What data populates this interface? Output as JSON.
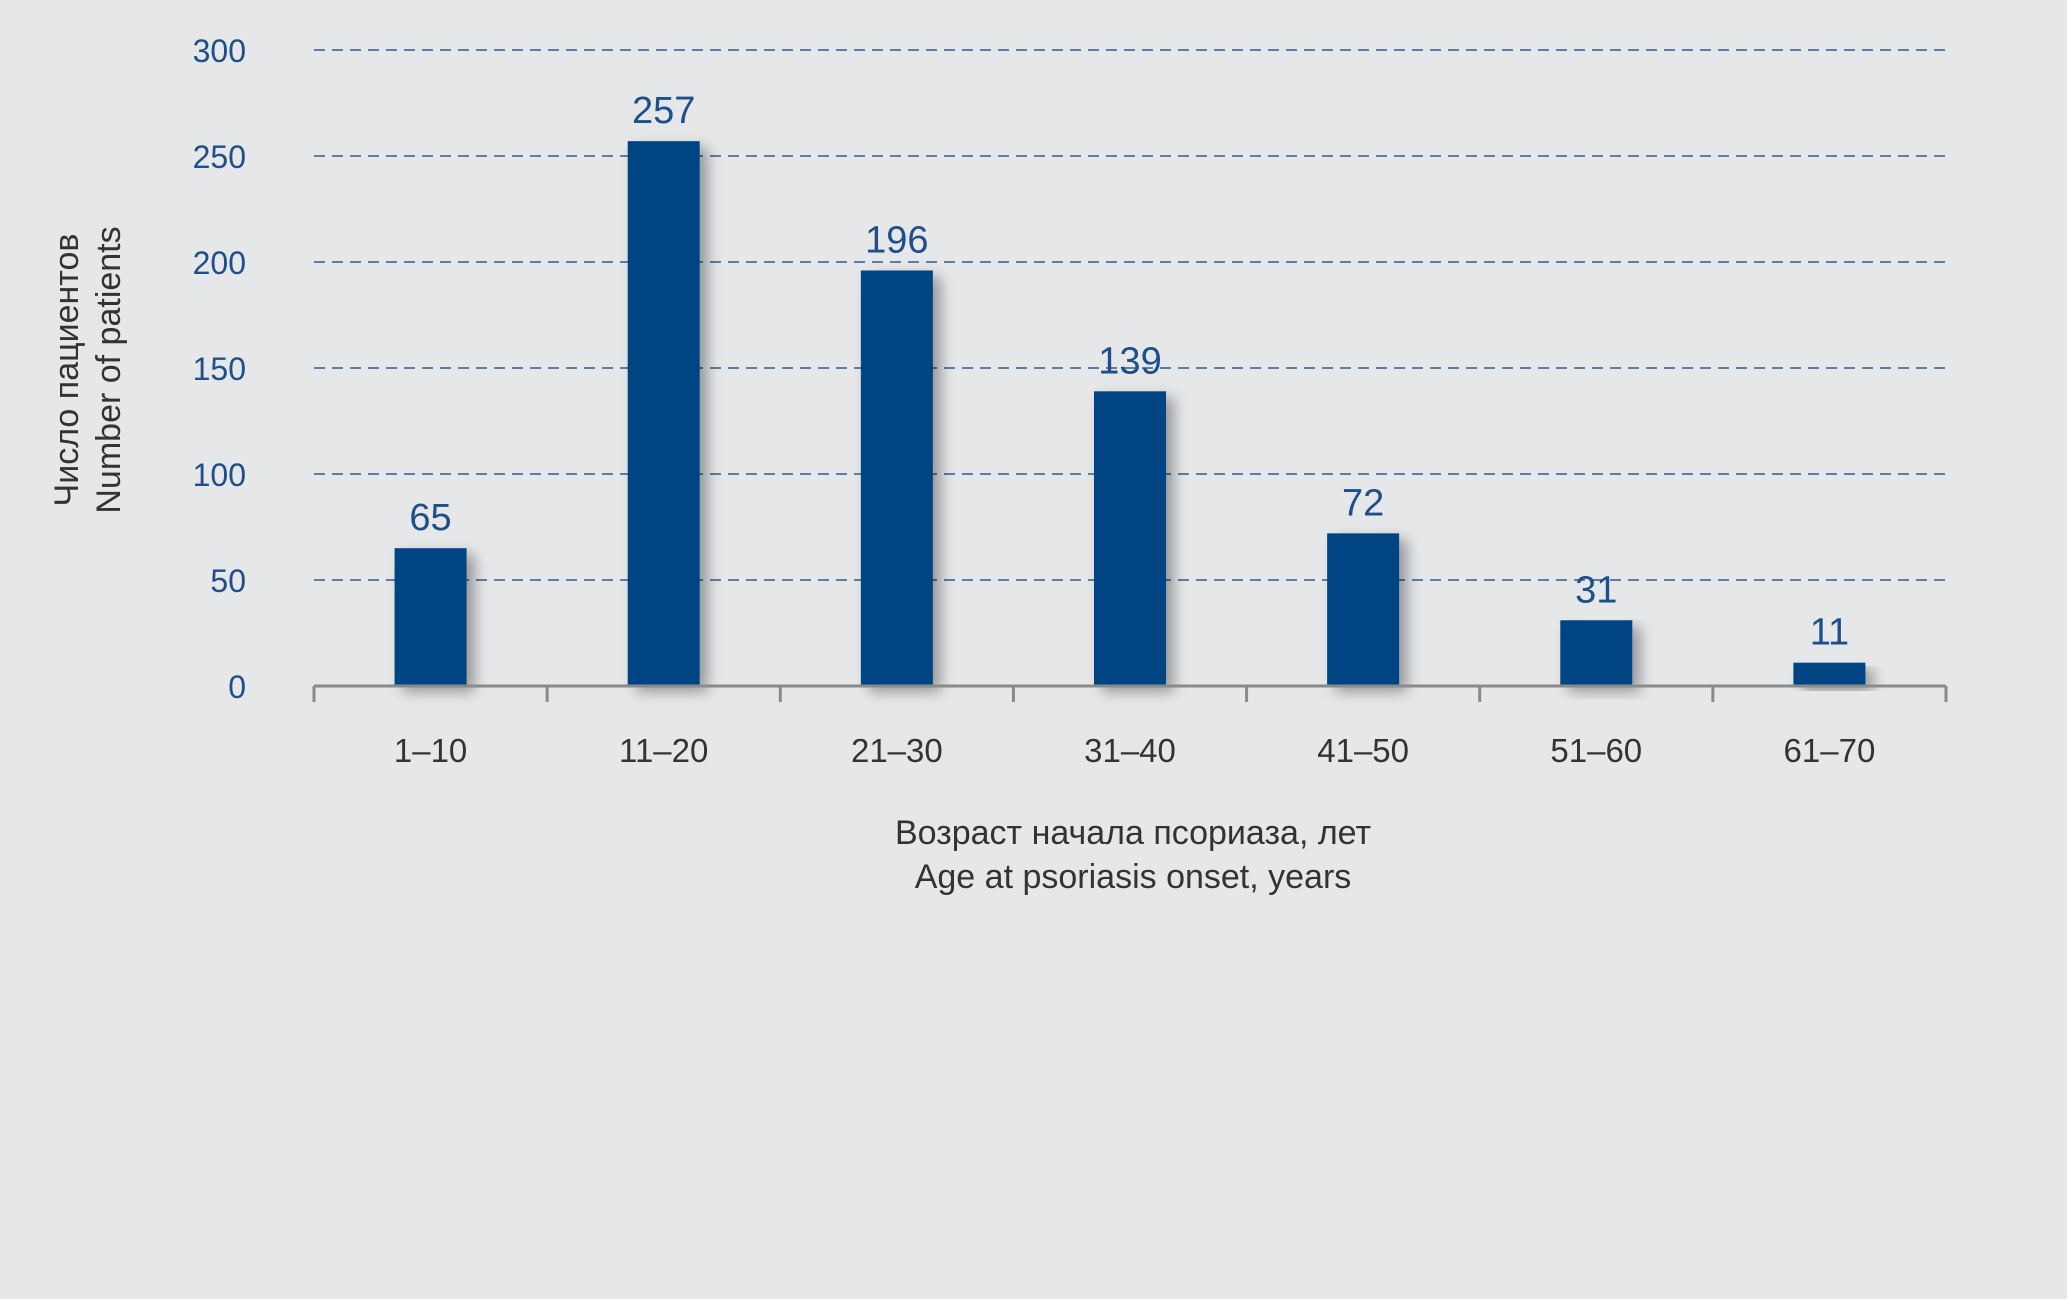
{
  "chart_data": {
    "type": "bar",
    "categories": [
      "1–10",
      "11–20",
      "21–30",
      "31–40",
      "41–50",
      "51–60",
      "61–70"
    ],
    "values": [
      65,
      257,
      196,
      139,
      72,
      31,
      11
    ],
    "data_labels": [
      "65",
      "257",
      "196",
      "139",
      "72",
      "31",
      "11"
    ],
    "ylabel_lines": [
      "Число пациентов",
      "Number of patients"
    ],
    "xlabel_lines": [
      "Возраст начала псориаза, лет",
      "Age at psoriasis onset, years"
    ],
    "ylim": [
      0,
      300
    ],
    "yticks": [
      0,
      50,
      100,
      150,
      200,
      250,
      300
    ],
    "ytick_labels": [
      "0",
      "50",
      "100",
      "150",
      "200",
      "250",
      "300"
    ],
    "grid": "horizontal dashed",
    "colors": {
      "background": "#e6e7e9",
      "bar": "#004483",
      "text": "#1f4e8c",
      "axis_label": "#333333",
      "axis_line": "#8a8a8a",
      "grid": "#2d5a96"
    }
  }
}
